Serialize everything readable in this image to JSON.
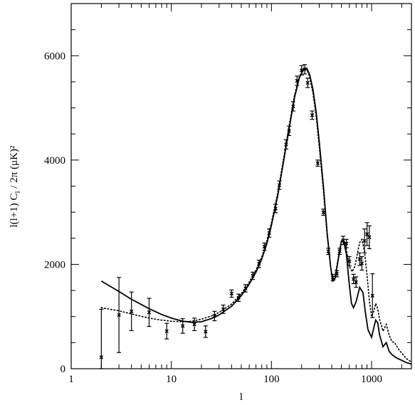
{
  "chart_data": {
    "type": "line",
    "xlabel": "l",
    "ylabel": "l(l+1)  C_l  / 2π   (μK)²",
    "ylabel_parts": {
      "pre": "l(l+1)  C",
      "sub": "l",
      "post": "  / 2π   (μK)²"
    },
    "x_scale": "log",
    "xlim": [
      1,
      2500
    ],
    "ylim": [
      0,
      7000
    ],
    "x_ticks": [
      1,
      10,
      100,
      1000
    ],
    "x_tick_labels": [
      "1",
      "10",
      "100",
      "1000"
    ],
    "y_ticks": [
      0,
      2000,
      4000,
      6000
    ],
    "y_tick_labels": [
      "0",
      "2000",
      "4000",
      "6000"
    ],
    "grid": false,
    "legend": "none",
    "series": [
      {
        "style": "solid",
        "x": [
          2,
          3,
          4,
          6,
          8,
          10,
          13,
          16,
          20,
          25,
          30,
          40,
          50,
          60,
          70,
          80,
          90,
          100,
          115,
          130,
          150,
          170,
          190,
          210,
          225,
          240,
          260,
          280,
          300,
          330,
          360,
          390,
          410,
          430,
          460,
          500,
          530,
          560,
          600,
          630,
          660,
          700,
          760,
          820,
          870,
          920,
          1000,
          1050,
          1100,
          1150,
          1200,
          1300,
          1400,
          1500,
          1600,
          1700,
          1800,
          1900,
          2000,
          2100,
          2200,
          2400,
          2500
        ],
        "y": [
          1680,
          1480,
          1330,
          1150,
          1040,
          970,
          910,
          890,
          900,
          960,
          1030,
          1200,
          1400,
          1620,
          1850,
          2100,
          2400,
          2750,
          3300,
          3900,
          4600,
          5200,
          5580,
          5750,
          5760,
          5650,
          5350,
          4900,
          4350,
          3500,
          2600,
          1950,
          1680,
          1720,
          2050,
          2450,
          2430,
          2200,
          1600,
          1250,
          1170,
          1280,
          1560,
          1460,
          1060,
          750,
          600,
          780,
          930,
          880,
          650,
          420,
          500,
          330,
          270,
          230,
          200,
          180,
          160,
          140,
          120,
          100,
          90
        ]
      },
      {
        "style": "dotted",
        "x": [
          2,
          3,
          4,
          6,
          8,
          10,
          13,
          16,
          20,
          25,
          30,
          40,
          50,
          60,
          70,
          80,
          90,
          100,
          115,
          130,
          150,
          170,
          190,
          210,
          225,
          240,
          260,
          280,
          300,
          330,
          360,
          390,
          410,
          430,
          460,
          500,
          530,
          560,
          600,
          640,
          680,
          720,
          760,
          800,
          850,
          900,
          950,
          1000,
          1050,
          1100,
          1150,
          1200,
          1300,
          1400,
          1500,
          1600,
          1700,
          1800,
          1900,
          2000,
          2100,
          2200,
          2400,
          2500
        ],
        "y": [
          1170,
          1110,
          1050,
          970,
          930,
          910,
          900,
          910,
          950,
          1010,
          1080,
          1240,
          1440,
          1660,
          1890,
          2140,
          2450,
          2800,
          3350,
          3950,
          4650,
          5250,
          5600,
          5750,
          5740,
          5600,
          5280,
          4820,
          4250,
          3420,
          2550,
          1950,
          1700,
          1760,
          2080,
          2460,
          2470,
          2280,
          1960,
          1860,
          1960,
          2200,
          2420,
          2480,
          2240,
          1800,
          1300,
          1000,
          1100,
          1250,
          1150,
          950,
          720,
          850,
          640,
          520,
          500,
          420,
          350,
          300,
          250,
          200,
          150,
          130
        ]
      },
      {
        "style": "points-with-errorbars",
        "x": [
          2,
          3,
          4,
          6,
          9,
          13,
          17,
          22,
          27,
          33,
          40,
          47,
          55,
          65,
          75,
          85,
          95,
          110,
          120,
          140,
          150,
          165,
          180,
          200,
          215,
          230,
          255,
          290,
          330,
          370,
          410,
          450,
          480,
          520,
          560,
          600,
          660,
          700,
          760,
          800,
          850,
          900,
          950,
          1020
        ],
        "y": [
          220,
          1030,
          1100,
          1080,
          720,
          820,
          850,
          710,
          1010,
          1140,
          1440,
          1360,
          1540,
          1780,
          2010,
          2340,
          2600,
          3070,
          3520,
          4300,
          4560,
          5030,
          5520,
          5720,
          5740,
          5480,
          4860,
          3940,
          3000,
          2250,
          1750,
          1820,
          2250,
          2460,
          2400,
          2060,
          1720,
          1660,
          2100,
          2020,
          2450,
          2580,
          2520,
          1400
        ],
        "err": [
          920,
          720,
          370,
          270,
          150,
          140,
          120,
          110,
          90,
          80,
          70,
          70,
          70,
          70,
          70,
          70,
          80,
          80,
          80,
          90,
          90,
          90,
          90,
          90,
          90,
          90,
          80,
          60,
          60,
          60,
          60,
          60,
          60,
          80,
          80,
          90,
          90,
          100,
          120,
          130,
          230,
          220,
          220,
          420
        ]
      }
    ]
  }
}
